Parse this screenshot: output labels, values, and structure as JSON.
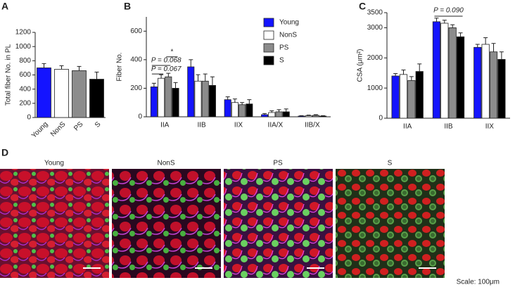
{
  "panels": [
    "A",
    "B",
    "C",
    "D"
  ],
  "chart_data": [
    {
      "type": "bar",
      "ylabel": "Total fiber No. in PL",
      "categories": [
        "Young",
        "NonS",
        "PS",
        "S"
      ],
      "values": [
        700,
        680,
        660,
        540
      ],
      "errors": [
        60,
        50,
        60,
        100
      ],
      "colors": [
        "#1414ff",
        "#ffffff",
        "#8c8c8c",
        "#000000"
      ],
      "ylim": [
        0,
        1200
      ],
      "yticks": [
        0,
        200,
        400,
        600,
        800,
        1000,
        1200
      ]
    },
    {
      "type": "bar",
      "ylabel": "Fiber No.",
      "categories": [
        "IIA",
        "IIB",
        "IIX",
        "IIA/X",
        "IIB/X"
      ],
      "series": [
        {
          "name": "Young",
          "color": "#1414ff",
          "values": [
            210,
            350,
            120,
            15,
            5
          ],
          "errors": [
            25,
            50,
            20,
            8,
            3
          ]
        },
        {
          "name": "NonS",
          "color": "#ffffff",
          "values": [
            270,
            250,
            100,
            30,
            8
          ],
          "errors": [
            25,
            45,
            25,
            12,
            4
          ]
        },
        {
          "name": "PS",
          "color": "#8c8c8c",
          "values": [
            280,
            250,
            85,
            35,
            10
          ],
          "errors": [
            25,
            50,
            15,
            15,
            5
          ]
        },
        {
          "name": "S",
          "color": "#000000",
          "values": [
            200,
            220,
            90,
            35,
            5
          ],
          "errors": [
            40,
            60,
            30,
            20,
            3
          ]
        }
      ],
      "annotations": [
        "P = 0.067",
        "P = 0.068",
        "*"
      ],
      "legend": "upper right",
      "ylim": [
        0,
        700
      ],
      "yticks": [
        0,
        200,
        400,
        600
      ]
    },
    {
      "type": "bar",
      "ylabel": "CSA (μm²)",
      "categories": [
        "IIA",
        "IIB",
        "IIX"
      ],
      "series": [
        {
          "name": "Young",
          "color": "#1414ff",
          "values": [
            1400,
            3200,
            2350
          ],
          "errors": [
            80,
            120,
            100
          ]
        },
        {
          "name": "NonS",
          "color": "#ffffff",
          "values": [
            1450,
            3150,
            2450
          ],
          "errors": [
            150,
            100,
            220
          ]
        },
        {
          "name": "PS",
          "color": "#8c8c8c",
          "values": [
            1250,
            3000,
            2200
          ],
          "errors": [
            130,
            100,
            280
          ]
        },
        {
          "name": "S",
          "color": "#000000",
          "values": [
            1550,
            2700,
            1950
          ],
          "errors": [
            250,
            130,
            250
          ]
        }
      ],
      "annotations": [
        "P = 0.090"
      ],
      "ylim": [
        0,
        3500
      ],
      "yticks": [
        0,
        1000,
        2000,
        3000,
        3500
      ]
    }
  ],
  "images": {
    "labels": [
      "Young",
      "NonS",
      "PS",
      "S"
    ],
    "scale": "Scale: 100μm"
  }
}
